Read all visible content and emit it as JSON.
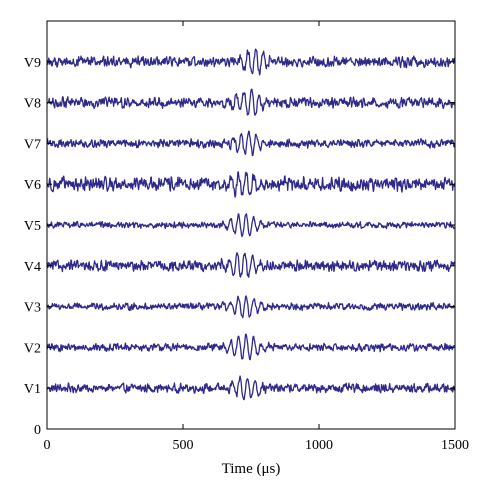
{
  "chart_data": {
    "type": "line",
    "title": "",
    "xlabel": "Time (μs)",
    "ylabel": "",
    "xlim": [
      0,
      1500
    ],
    "ylim": [
      0,
      10
    ],
    "x_ticks": [
      0,
      500,
      1000,
      1500
    ],
    "y_ticks": [
      {
        "label": "0",
        "value": 0
      },
      {
        "label": "V1",
        "value": 1
      },
      {
        "label": "V2",
        "value": 2
      },
      {
        "label": "V3",
        "value": 3
      },
      {
        "label": "V4",
        "value": 4
      },
      {
        "label": "V5",
        "value": 5
      },
      {
        "label": "V6",
        "value": 6
      },
      {
        "label": "V7",
        "value": 7
      },
      {
        "label": "V8",
        "value": 8
      },
      {
        "label": "V9",
        "value": 9
      }
    ],
    "grid": false,
    "line_color": "#2e2a8c",
    "series": [
      {
        "name": "V1",
        "offset": 1,
        "noise_amplitude": 0.13,
        "burst_center": 730,
        "burst_amplitude": 0.3,
        "burst_width": 55
      },
      {
        "name": "V2",
        "offset": 2,
        "noise_amplitude": 0.11,
        "burst_center": 725,
        "burst_amplitude": 0.3,
        "burst_width": 60
      },
      {
        "name": "V3",
        "offset": 3,
        "noise_amplitude": 0.1,
        "burst_center": 725,
        "burst_amplitude": 0.28,
        "burst_width": 55
      },
      {
        "name": "V4",
        "offset": 4,
        "noise_amplitude": 0.15,
        "burst_center": 720,
        "burst_amplitude": 0.3,
        "burst_width": 60
      },
      {
        "name": "V5",
        "offset": 5,
        "noise_amplitude": 0.09,
        "burst_center": 725,
        "burst_amplitude": 0.28,
        "burst_width": 55
      },
      {
        "name": "V6",
        "offset": 6,
        "noise_amplitude": 0.2,
        "burst_center": 725,
        "burst_amplitude": 0.3,
        "burst_width": 60
      },
      {
        "name": "V7",
        "offset": 7,
        "noise_amplitude": 0.12,
        "burst_center": 735,
        "burst_amplitude": 0.3,
        "burst_width": 55
      },
      {
        "name": "V8",
        "offset": 8,
        "noise_amplitude": 0.15,
        "burst_center": 745,
        "burst_amplitude": 0.3,
        "burst_width": 55
      },
      {
        "name": "V9",
        "offset": 9,
        "noise_amplitude": 0.15,
        "burst_center": 760,
        "burst_amplitude": 0.32,
        "burst_width": 55
      }
    ]
  }
}
